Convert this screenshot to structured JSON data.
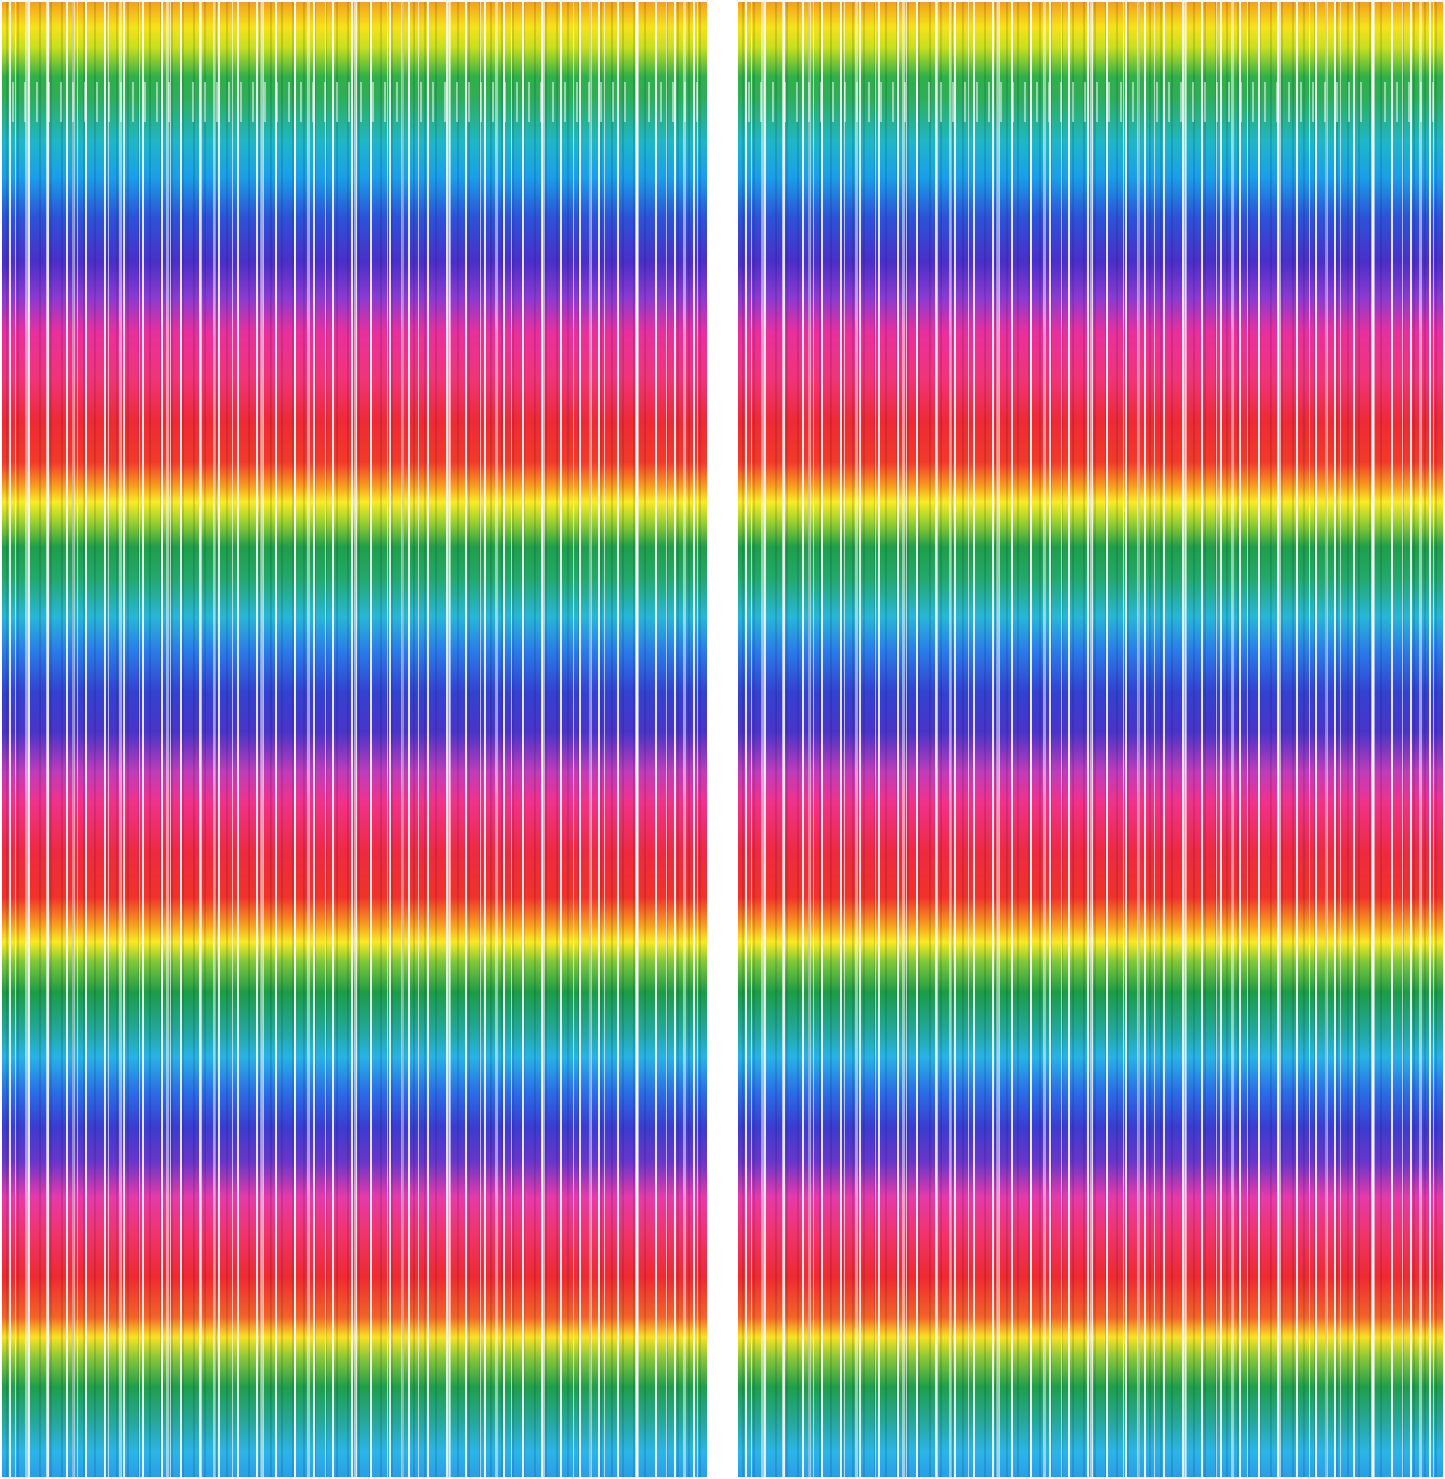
{
  "image": {
    "subject": "rainbow-foil-fringe-curtains",
    "panel_count": 2,
    "colors": [
      "#f5e21a",
      "#2fb04a",
      "#1a9fe8",
      "#4a2fc8",
      "#e8309c",
      "#ee2a34"
    ]
  }
}
